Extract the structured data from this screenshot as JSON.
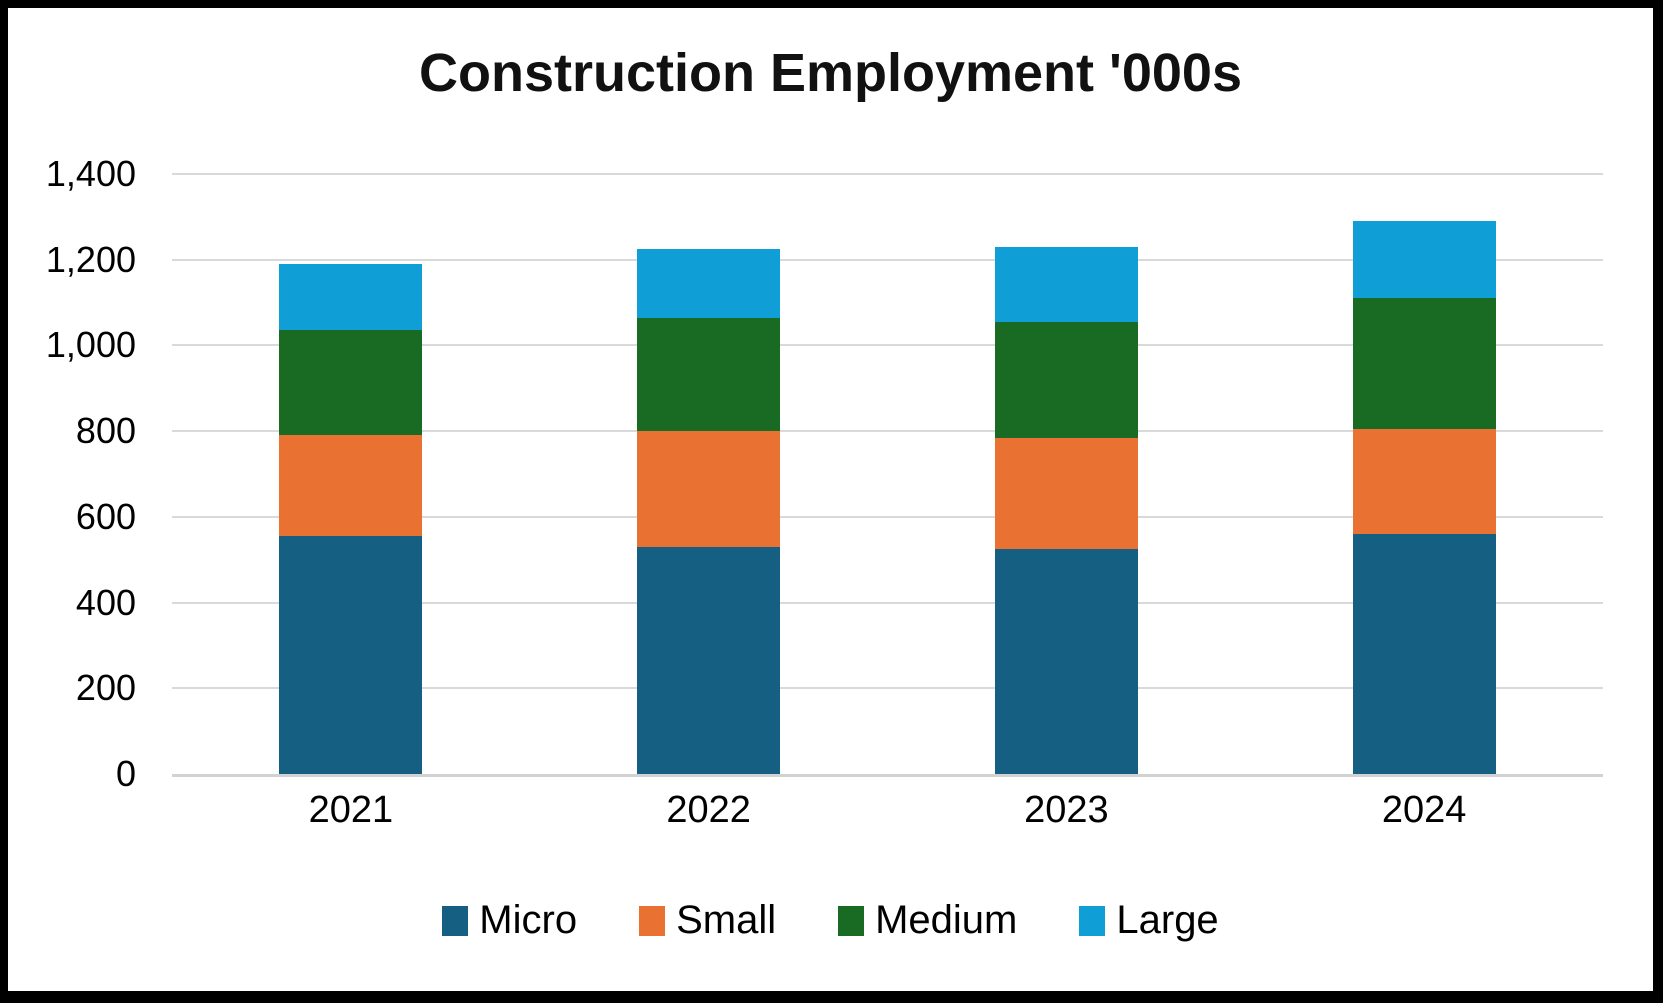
{
  "title": "Construction Employment '000s",
  "chart_data": {
    "type": "bar",
    "stacked": true,
    "title": "Construction Employment '000s",
    "xlabel": "",
    "ylabel": "",
    "categories": [
      "2021",
      "2022",
      "2023",
      "2024"
    ],
    "series": [
      {
        "name": "Micro",
        "color": "#156082",
        "values": [
          555,
          530,
          525,
          560
        ]
      },
      {
        "name": "Small",
        "color": "#E97132",
        "values": [
          235,
          270,
          260,
          245
        ]
      },
      {
        "name": "Medium",
        "color": "#196B24",
        "values": [
          245,
          265,
          270,
          305
        ]
      },
      {
        "name": "Large",
        "color": "#0F9ED5",
        "values": [
          155,
          160,
          175,
          180
        ]
      }
    ],
    "totals": [
      1190,
      1225,
      1230,
      1290
    ],
    "ylim": [
      0,
      1400
    ],
    "ytick_step": 200,
    "ytick_labels": [
      "0",
      "200",
      "400",
      "600",
      "800",
      "1,000",
      "1,200",
      "1,400"
    ],
    "grid": "horizontal",
    "legend_position": "bottom",
    "legend_labels": [
      "Micro",
      "Small",
      "Medium",
      "Large"
    ]
  },
  "colors": {
    "gridline": "#D9D9D9",
    "axis_line": "#D2D2D2",
    "text": "#000000",
    "frame": "#000000",
    "background": "#FFFFFF"
  }
}
